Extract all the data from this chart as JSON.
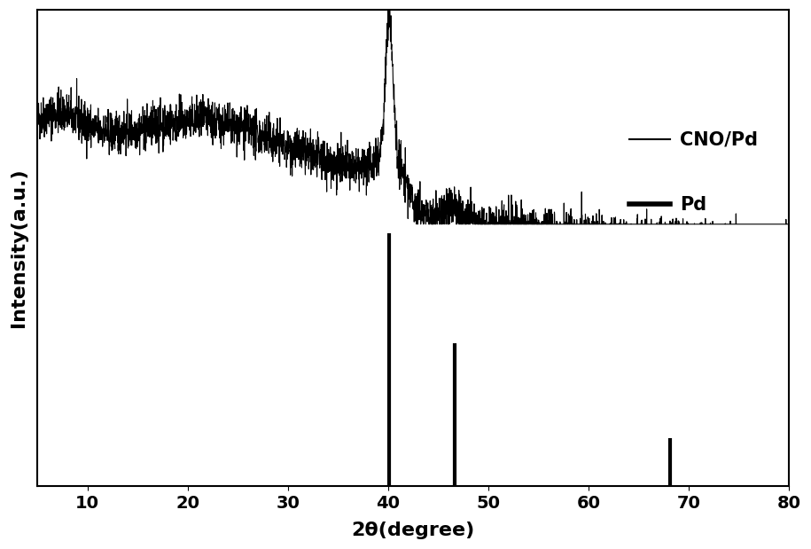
{
  "title": "",
  "xlabel": "2θ(degree)",
  "ylabel": "Intensity(a.u.)",
  "xlim": [
    5,
    80
  ],
  "ylim": [
    0,
    1.0
  ],
  "xticklabels": [
    10,
    20,
    30,
    40,
    50,
    60,
    70,
    80
  ],
  "background_color": "#ffffff",
  "line_color": "#000000",
  "line_width": 0.8,
  "pd_peaks": [
    {
      "x": 40.1,
      "ymin": 0.0,
      "ymax": 0.53
    },
    {
      "x": 46.6,
      "ymin": 0.0,
      "ymax": 0.3
    },
    {
      "x": 68.1,
      "ymin": 0.0,
      "ymax": 0.1
    }
  ],
  "legend_entries": [
    "CNO/Pd",
    "Pd"
  ],
  "noise_seed": 42,
  "figsize": [
    9.15,
    6.19
  ],
  "dpi": 100
}
